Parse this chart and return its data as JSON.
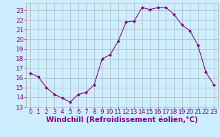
{
  "hours": [
    0,
    1,
    2,
    3,
    4,
    5,
    6,
    7,
    8,
    9,
    10,
    11,
    12,
    13,
    14,
    15,
    16,
    17,
    18,
    19,
    20,
    21,
    22,
    23
  ],
  "values": [
    16.5,
    16.1,
    15.0,
    14.3,
    13.9,
    13.5,
    14.3,
    14.5,
    15.3,
    18.0,
    18.4,
    19.8,
    21.8,
    21.9,
    23.3,
    23.1,
    23.3,
    23.3,
    22.6,
    21.5,
    20.9,
    19.4,
    16.6,
    15.3
  ],
  "line_color": "#880088",
  "marker": "D",
  "marker_size": 2.0,
  "bg_color": "#cceeff",
  "grid_color": "#aaaaaa",
  "xlabel": "Windchill (Refroidissement éolien,°C)",
  "xlabel_color": "#880088",
  "xlabel_fontsize": 7.5,
  "tick_color": "#880088",
  "tick_fontsize": 6.5,
  "ylim": [
    13,
    23.8
  ],
  "xlim": [
    -0.5,
    23.5
  ],
  "yticks": [
    13,
    14,
    15,
    16,
    17,
    18,
    19,
    20,
    21,
    22,
    23
  ],
  "xticks": [
    0,
    1,
    2,
    3,
    4,
    5,
    6,
    7,
    8,
    9,
    10,
    11,
    12,
    13,
    14,
    15,
    16,
    17,
    18,
    19,
    20,
    21,
    22,
    23
  ]
}
